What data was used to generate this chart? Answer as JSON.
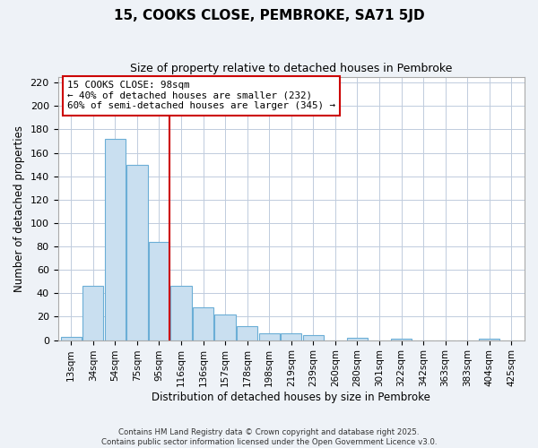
{
  "title": "15, COOKS CLOSE, PEMBROKE, SA71 5JD",
  "subtitle": "Size of property relative to detached houses in Pembroke",
  "xlabel": "Distribution of detached houses by size in Pembroke",
  "ylabel": "Number of detached properties",
  "bin_labels": [
    "13sqm",
    "34sqm",
    "54sqm",
    "75sqm",
    "95sqm",
    "116sqm",
    "136sqm",
    "157sqm",
    "178sqm",
    "198sqm",
    "219sqm",
    "239sqm",
    "260sqm",
    "280sqm",
    "301sqm",
    "322sqm",
    "342sqm",
    "363sqm",
    "383sqm",
    "404sqm",
    "425sqm"
  ],
  "bar_values": [
    3,
    46,
    172,
    150,
    84,
    46,
    28,
    22,
    12,
    6,
    6,
    4,
    0,
    2,
    0,
    1,
    0,
    0,
    0,
    1,
    0
  ],
  "bar_color": "#c9dff0",
  "bar_edge_color": "#6baed6",
  "ylim": [
    0,
    225
  ],
  "yticks": [
    0,
    20,
    40,
    60,
    80,
    100,
    120,
    140,
    160,
    180,
    200,
    220
  ],
  "vline_x_index": 4,
  "vline_color": "#cc0000",
  "annotation_title": "15 COOKS CLOSE: 98sqm",
  "annotation_line1": "← 40% of detached houses are smaller (232)",
  "annotation_line2": "60% of semi-detached houses are larger (345) →",
  "annotation_box_color": "#ffffff",
  "annotation_box_edge_color": "#cc0000",
  "footer1": "Contains HM Land Registry data © Crown copyright and database right 2025.",
  "footer2": "Contains public sector information licensed under the Open Government Licence v3.0.",
  "background_color": "#eef2f7",
  "plot_background_color": "#ffffff",
  "grid_color": "#c0ccdd"
}
